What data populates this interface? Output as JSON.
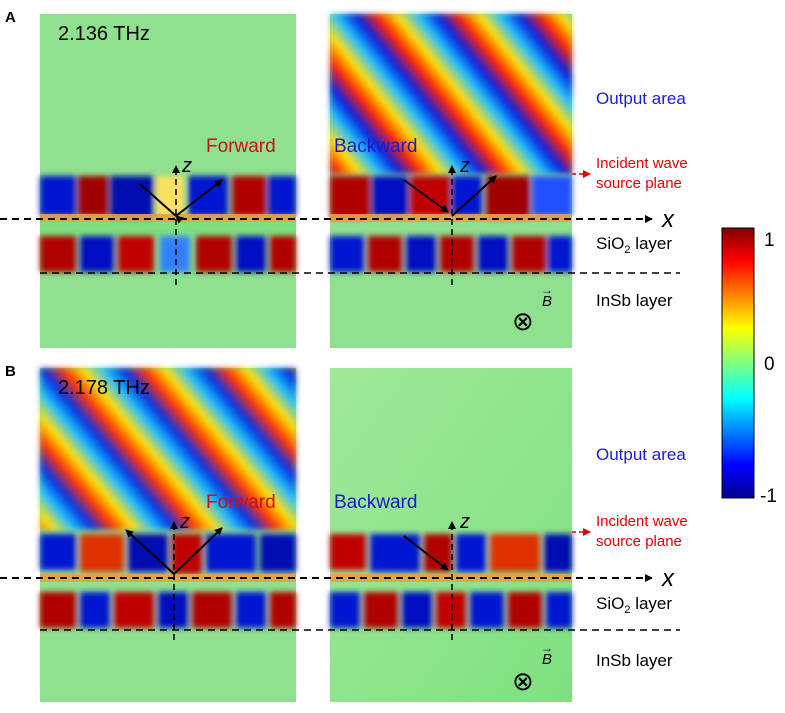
{
  "panels": [
    {
      "letter": "A",
      "frequency": "2.136 THz",
      "left_label": "Forward",
      "right_label": "Backward",
      "axis_x": "x",
      "axis_z_left": "z",
      "axis_z_right": "z",
      "output_area": "Output area",
      "incident_line1": "Incident wave",
      "incident_line2": "source plane",
      "sio2_label": "SiO",
      "sio2_sub": "2",
      "sio2_suffix": " layer",
      "insb_label": "InSb layer",
      "b_field": "B",
      "b_arrow": "→",
      "b_symbol": "⊗"
    },
    {
      "letter": "B",
      "frequency": "2.178 THz",
      "left_label": "Forward",
      "right_label": "Backward",
      "axis_x": "x",
      "axis_z_left": "z",
      "axis_z_right": "z",
      "output_area": "Output area",
      "incident_line1": "Incident wave",
      "incident_line2": "source plane",
      "sio2_label": "SiO",
      "sio2_sub": "2",
      "sio2_suffix": " layer",
      "insb_label": "InSb layer",
      "b_field": "B",
      "b_arrow": "→",
      "b_symbol": "⊗"
    }
  ],
  "colorbar": {
    "max_label": "1",
    "mid_label": "0",
    "min_label": "-1",
    "max": 1,
    "min": -1,
    "colormap": "jet",
    "stops": [
      "#00008f",
      "#0000ff",
      "#00ffff",
      "#7fff7f",
      "#ffff00",
      "#ff0000",
      "#800000"
    ]
  },
  "colors": {
    "output_area": "#1a1ae6",
    "incident": "#e60000",
    "forward": "#cc1111",
    "backward": "#1a1acc",
    "waveguide": "#d9a040",
    "background_field": "#8fe08f"
  }
}
